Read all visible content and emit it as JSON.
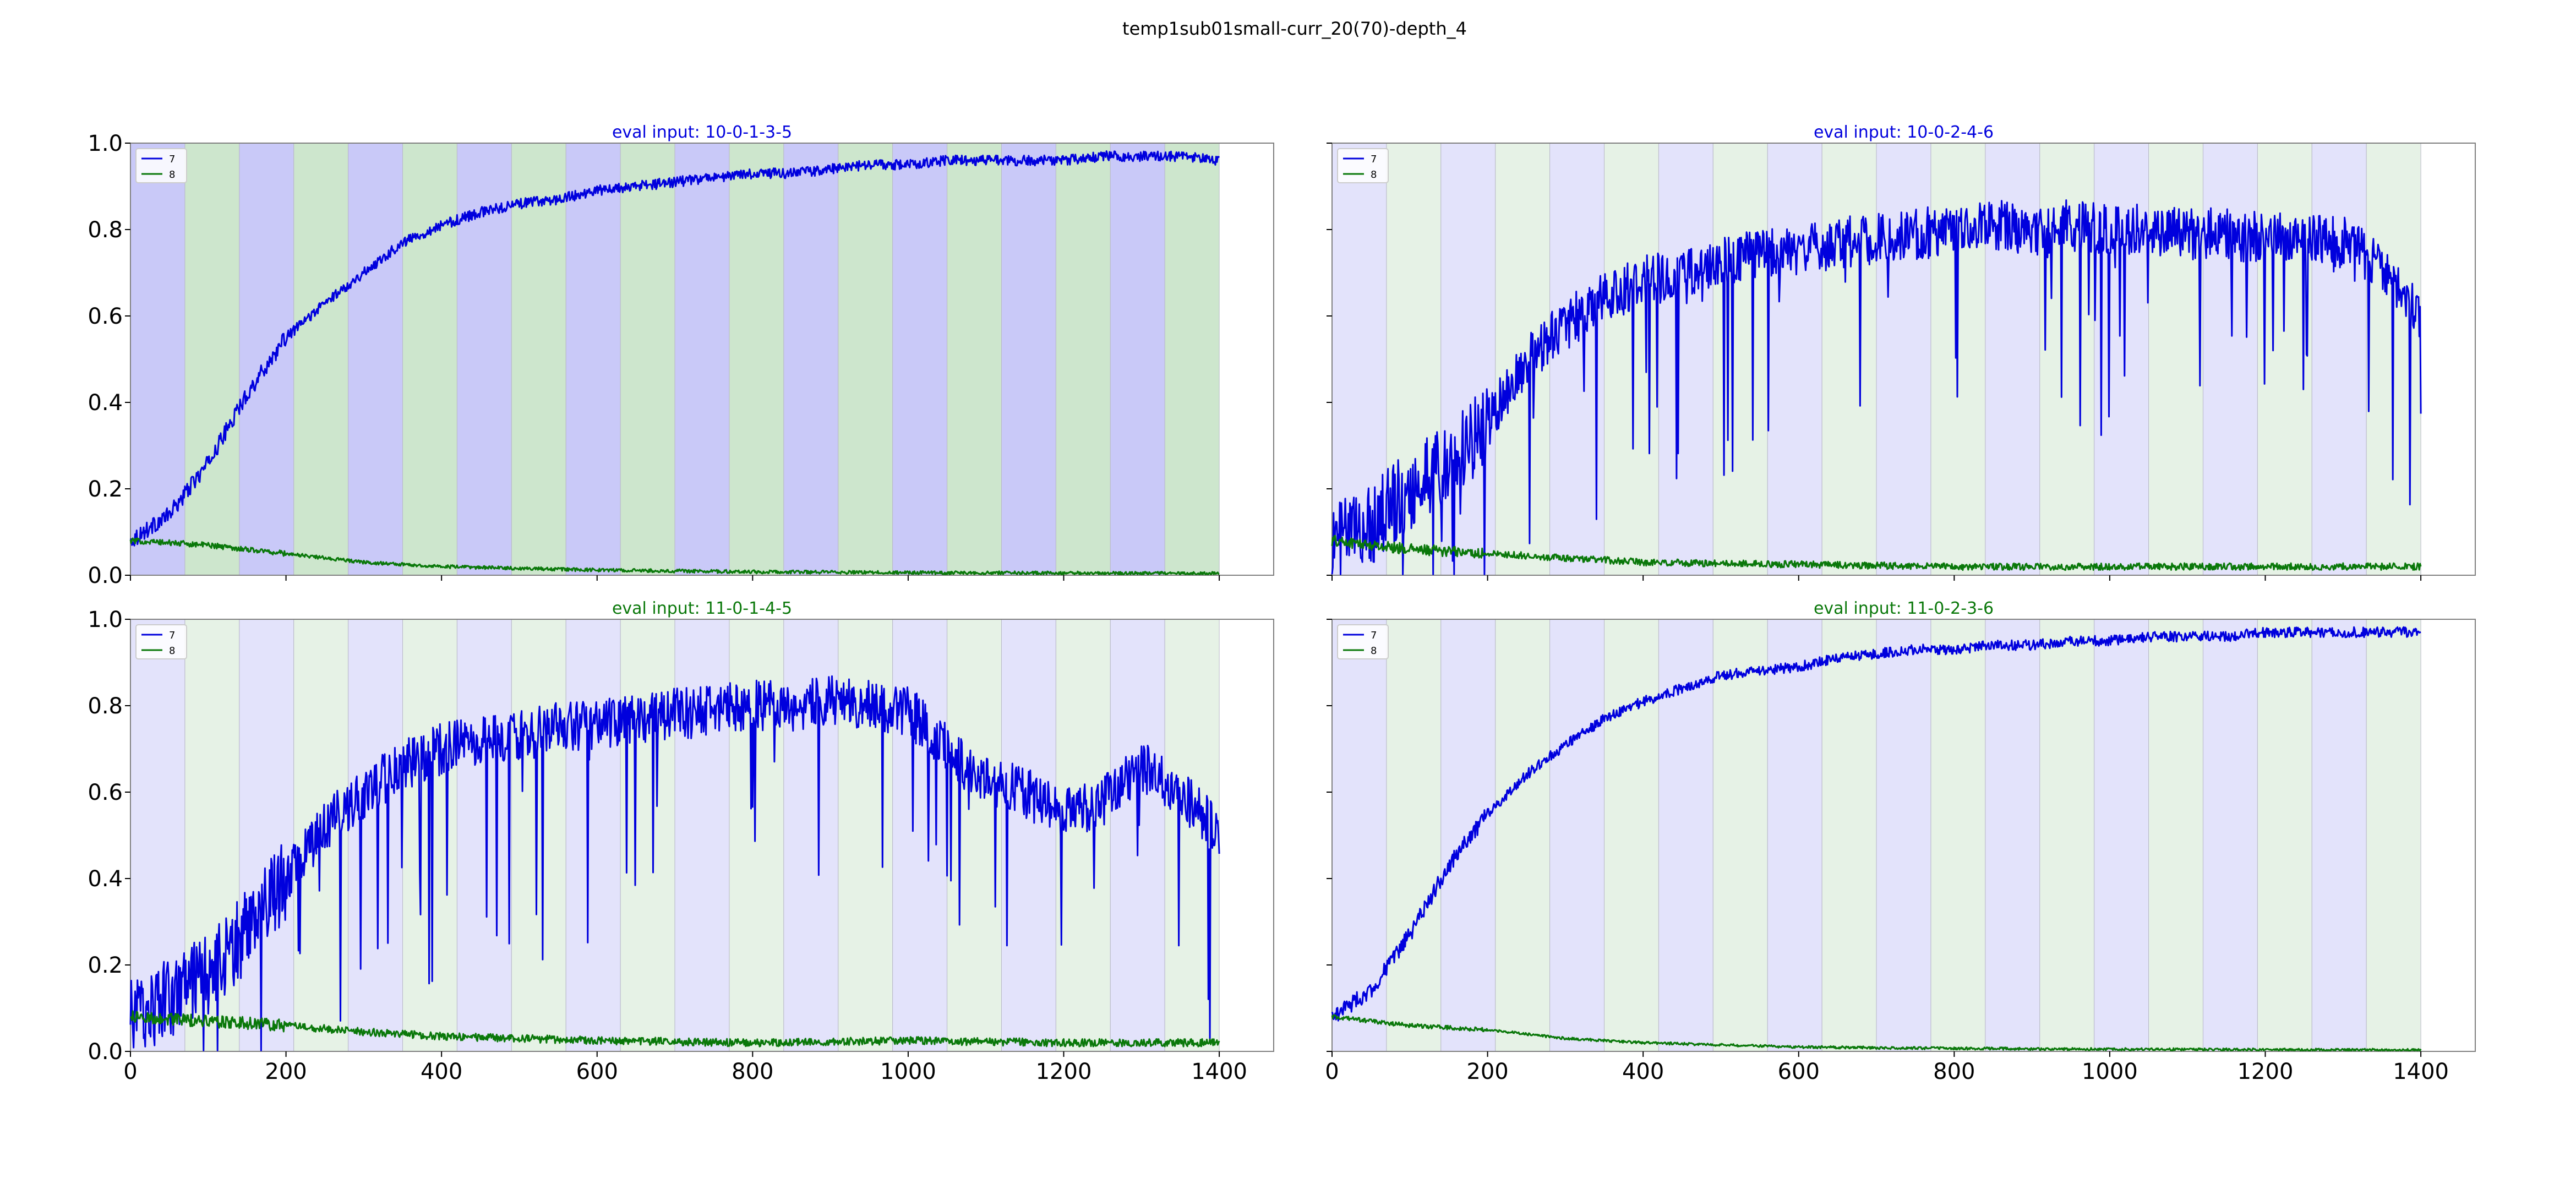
{
  "figure": {
    "suptitle": "temp1sub01small-curr_20(70)-depth_4"
  },
  "colors": {
    "series_7": "#0000dd",
    "series_8": "#0a780a",
    "band_blue_strong": "#c9c9f8",
    "band_green_strong": "#cde6cd",
    "band_blue_light": "#e3e3fb",
    "band_green_light": "#e6f2e6",
    "axis": "#808080"
  },
  "chart_data": [
    {
      "type": "line",
      "title": "eval input: 10-0-1-3-5",
      "title_color": "#0000dd",
      "xlim": [
        0,
        1470
      ],
      "ylim": [
        0.0,
        1.0
      ],
      "x_ticks": [
        0,
        200,
        400,
        600,
        800,
        1000,
        1200,
        1400
      ],
      "y_ticks": [
        0.0,
        0.2,
        0.4,
        0.6,
        0.8,
        1.0
      ],
      "show_x_ticklabels": false,
      "show_y_ticklabels": true,
      "legend": {
        "position": "top-left",
        "entries": [
          "7",
          "8"
        ]
      },
      "band_width": 70,
      "band_end": 1400,
      "band_style": "strong",
      "series": [
        {
          "name": "7",
          "color": "#0000dd",
          "x": [
            0,
            50,
            100,
            150,
            200,
            250,
            300,
            350,
            400,
            450,
            500,
            550,
            600,
            650,
            700,
            750,
            800,
            850,
            900,
            950,
            1000,
            1050,
            1100,
            1150,
            1200,
            1250,
            1300,
            1350,
            1400
          ],
          "y": [
            0.08,
            0.14,
            0.26,
            0.42,
            0.55,
            0.63,
            0.7,
            0.77,
            0.81,
            0.84,
            0.86,
            0.87,
            0.89,
            0.9,
            0.91,
            0.92,
            0.93,
            0.93,
            0.94,
            0.95,
            0.95,
            0.96,
            0.96,
            0.96,
            0.96,
            0.97,
            0.97,
            0.97,
            0.96
          ],
          "noise": 0.012
        },
        {
          "name": "8",
          "color": "#0a780a",
          "x": [
            0,
            100,
            200,
            300,
            400,
            600,
            800,
            1000,
            1200,
            1400
          ],
          "y": [
            0.08,
            0.07,
            0.05,
            0.03,
            0.02,
            0.012,
            0.008,
            0.006,
            0.005,
            0.004
          ],
          "noise": 0.004
        }
      ]
    },
    {
      "type": "line",
      "title": "eval input: 10-0-2-4-6",
      "title_color": "#0000dd",
      "xlim": [
        0,
        1470
      ],
      "ylim": [
        0.0,
        1.0
      ],
      "x_ticks": [
        0,
        200,
        400,
        600,
        800,
        1000,
        1200,
        1400
      ],
      "y_ticks": [
        0.0,
        0.2,
        0.4,
        0.6,
        0.8,
        1.0
      ],
      "show_x_ticklabels": false,
      "show_y_ticklabels": false,
      "legend": {
        "position": "top-left",
        "entries": [
          "7",
          "8"
        ]
      },
      "band_width": 70,
      "band_end": 1400,
      "band_style": "light",
      "series": [
        {
          "name": "7",
          "color": "#0000dd",
          "x": [
            0,
            50,
            100,
            150,
            200,
            250,
            300,
            350,
            400,
            450,
            500,
            550,
            600,
            650,
            700,
            750,
            800,
            850,
            900,
            950,
            1000,
            1050,
            1100,
            1150,
            1200,
            1250,
            1300,
            1350,
            1400
          ],
          "y": [
            0.07,
            0.12,
            0.2,
            0.27,
            0.35,
            0.5,
            0.58,
            0.64,
            0.68,
            0.7,
            0.73,
            0.74,
            0.75,
            0.77,
            0.78,
            0.79,
            0.8,
            0.81,
            0.8,
            0.81,
            0.8,
            0.8,
            0.79,
            0.79,
            0.78,
            0.78,
            0.77,
            0.72,
            0.6
          ],
          "noise": 0.06,
          "dips": 0.5
        },
        {
          "name": "8",
          "color": "#0a780a",
          "x": [
            0,
            100,
            200,
            300,
            400,
            600,
            800,
            1000,
            1200,
            1400
          ],
          "y": [
            0.08,
            0.06,
            0.05,
            0.04,
            0.03,
            0.025,
            0.02,
            0.02,
            0.02,
            0.02
          ],
          "noise": 0.008
        }
      ]
    },
    {
      "type": "line",
      "title": "eval input: 11-0-1-4-5",
      "title_color": "#0a780a",
      "xlim": [
        0,
        1470
      ],
      "ylim": [
        0.0,
        1.0
      ],
      "x_ticks": [
        0,
        200,
        400,
        600,
        800,
        1000,
        1200,
        1400
      ],
      "y_ticks": [
        0.0,
        0.2,
        0.4,
        0.6,
        0.8,
        1.0
      ],
      "show_x_ticklabels": true,
      "show_y_ticklabels": true,
      "legend": {
        "position": "top-left",
        "entries": [
          "7",
          "8"
        ]
      },
      "band_width": 70,
      "band_end": 1400,
      "band_style": "light",
      "series": [
        {
          "name": "7",
          "color": "#0000dd",
          "x": [
            0,
            50,
            100,
            150,
            200,
            250,
            300,
            350,
            400,
            450,
            500,
            550,
            600,
            650,
            700,
            750,
            800,
            850,
            900,
            950,
            1000,
            1050,
            1100,
            1150,
            1200,
            1250,
            1300,
            1350,
            1400
          ],
          "y": [
            0.08,
            0.12,
            0.18,
            0.28,
            0.4,
            0.52,
            0.6,
            0.66,
            0.7,
            0.72,
            0.73,
            0.75,
            0.76,
            0.77,
            0.78,
            0.79,
            0.8,
            0.8,
            0.81,
            0.8,
            0.79,
            0.7,
            0.62,
            0.6,
            0.55,
            0.58,
            0.66,
            0.6,
            0.5
          ],
          "noise": 0.06,
          "dips": 0.55
        },
        {
          "name": "8",
          "color": "#0a780a",
          "x": [
            0,
            100,
            200,
            300,
            400,
            600,
            800,
            1000,
            1200,
            1400
          ],
          "y": [
            0.08,
            0.07,
            0.06,
            0.045,
            0.035,
            0.025,
            0.02,
            0.025,
            0.02,
            0.02
          ],
          "noise": 0.009
        }
      ]
    },
    {
      "type": "line",
      "title": "eval input: 11-0-2-3-6",
      "title_color": "#0a780a",
      "xlim": [
        0,
        1470
      ],
      "ylim": [
        0.0,
        1.0
      ],
      "x_ticks": [
        0,
        200,
        400,
        600,
        800,
        1000,
        1200,
        1400
      ],
      "y_ticks": [
        0.0,
        0.2,
        0.4,
        0.6,
        0.8,
        1.0
      ],
      "show_x_ticklabels": true,
      "show_y_ticklabels": false,
      "legend": {
        "position": "top-left",
        "entries": [
          "7",
          "8"
        ]
      },
      "band_width": 70,
      "band_end": 1400,
      "band_style": "light",
      "series": [
        {
          "name": "7",
          "color": "#0000dd",
          "x": [
            0,
            50,
            100,
            150,
            200,
            250,
            300,
            350,
            400,
            450,
            500,
            550,
            600,
            650,
            700,
            750,
            800,
            850,
            900,
            950,
            1000,
            1050,
            1100,
            1150,
            1200,
            1250,
            1300,
            1350,
            1400
          ],
          "y": [
            0.08,
            0.14,
            0.27,
            0.43,
            0.55,
            0.64,
            0.71,
            0.77,
            0.81,
            0.84,
            0.87,
            0.88,
            0.89,
            0.91,
            0.92,
            0.93,
            0.93,
            0.94,
            0.94,
            0.95,
            0.95,
            0.96,
            0.96,
            0.96,
            0.97,
            0.97,
            0.97,
            0.97,
            0.97
          ],
          "noise": 0.012
        },
        {
          "name": "8",
          "color": "#0a780a",
          "x": [
            0,
            100,
            200,
            300,
            400,
            600,
            800,
            1000,
            1200,
            1400
          ],
          "y": [
            0.08,
            0.06,
            0.05,
            0.03,
            0.02,
            0.01,
            0.007,
            0.005,
            0.004,
            0.003
          ],
          "noise": 0.003
        }
      ]
    }
  ]
}
